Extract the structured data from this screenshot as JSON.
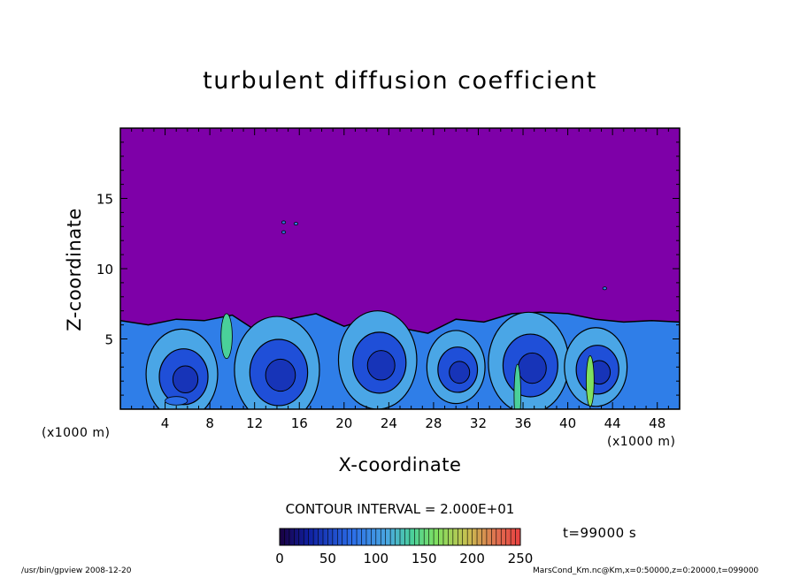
{
  "chart_data": {
    "type": "heatmap",
    "title": "turbulent diffusion coefficient",
    "xlabel": "X-coordinate",
    "ylabel": "Z-coordinate",
    "x_unit": "(x1000 m)",
    "xlim": [
      0,
      50
    ],
    "ylim": [
      0,
      20
    ],
    "x_ticks": [
      4,
      8,
      12,
      16,
      20,
      24,
      28,
      32,
      36,
      40,
      44,
      48
    ],
    "y_ticks": [
      5,
      10,
      15
    ],
    "colorbar": {
      "min": 0,
      "max": 250,
      "ticks": [
        0,
        50,
        100,
        150,
        200,
        250
      ]
    },
    "contour_interval_label": "CONTOUR INTERVAL = 2.000E+01",
    "time_label": "t=99000 s",
    "background_color": "#7e00a8",
    "turbulent_layer_top": [
      6.3,
      6.0,
      6.4,
      6.3,
      6.7,
      5.4,
      6.4,
      6.8,
      5.9,
      6.5,
      5.8,
      5.4,
      6.4,
      6.2,
      6.8,
      6.9,
      6.8,
      6.4,
      6.2,
      6.3,
      6.2
    ],
    "eddy_centers": [
      {
        "x": 5.5,
        "z": 2.5,
        "r": 3.2
      },
      {
        "x": 14.0,
        "z": 2.8,
        "r": 3.8
      },
      {
        "x": 23.0,
        "z": 3.5,
        "r": 3.5
      },
      {
        "x": 30.0,
        "z": 3.0,
        "r": 2.6
      },
      {
        "x": 36.5,
        "z": 3.3,
        "r": 3.6
      },
      {
        "x": 42.5,
        "z": 3.0,
        "r": 2.8
      }
    ]
  },
  "footer": {
    "left": "/usr/bin/gpview   2008-12-20",
    "right": "MarsCond_Km.nc@Km,x=0:50000,z=0:20000,t=099000"
  }
}
